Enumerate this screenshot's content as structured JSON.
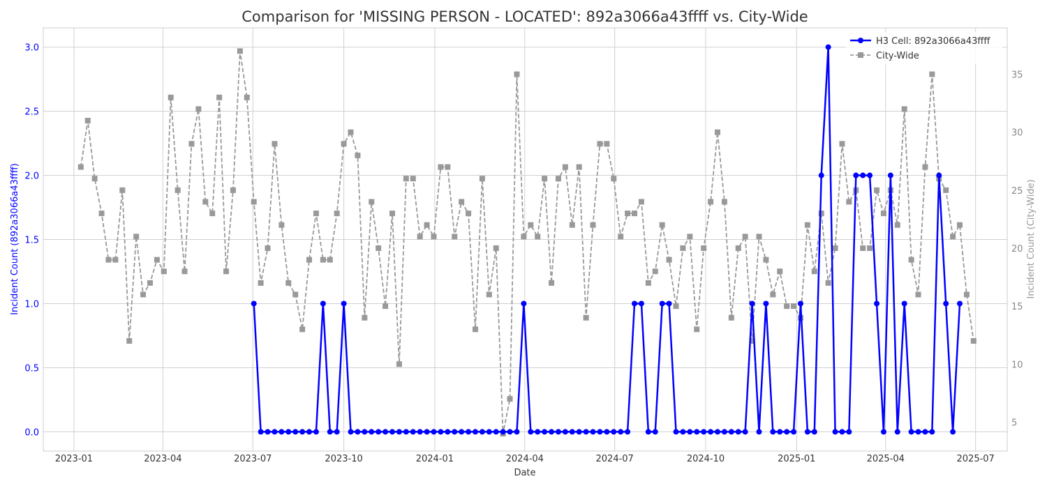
{
  "chart_data": {
    "type": "line",
    "title": "Comparison for 'MISSING PERSON - LOCATED': 892a3066a43ffff vs. City-Wide",
    "xlabel": "Date",
    "ylabel_left": "Incident Count (892a3066a43ffff)",
    "ylabel_right": "Incident Count (City-Wide)",
    "xlim": [
      "2022-12-01",
      "2025-08-02"
    ],
    "ylim_left": [
      -0.15,
      3.15
    ],
    "ylim_right": [
      2.5,
      39
    ],
    "x_ticks": [
      "2023-01",
      "2023-04",
      "2023-07",
      "2023-10",
      "2024-01",
      "2024-04",
      "2024-07",
      "2024-10",
      "2025-01",
      "2025-04",
      "2025-07"
    ],
    "y_ticks_left": [
      "0.0",
      "0.5",
      "1.0",
      "1.5",
      "2.0",
      "2.5",
      "3.0"
    ],
    "y_ticks_right": [
      "5",
      "10",
      "15",
      "20",
      "25",
      "30",
      "35"
    ],
    "grid": true,
    "legend_position": "top-right",
    "series": [
      {
        "name": "H3 Cell: 892a3066a43ffff",
        "axis": "left",
        "color": "#0000ff",
        "style": "solid",
        "marker": "circle",
        "start": "2023-07-02",
        "step_days": 7,
        "values": [
          1,
          0,
          0,
          0,
          0,
          0,
          0,
          0,
          0,
          0,
          1,
          0,
          0,
          1,
          0,
          0,
          0,
          0,
          0,
          0,
          0,
          0,
          0,
          0,
          0,
          0,
          0,
          0,
          0,
          0,
          0,
          0,
          0,
          0,
          0,
          0,
          0,
          0,
          0,
          1,
          0,
          0,
          0,
          0,
          0,
          0,
          0,
          0,
          0,
          0,
          0,
          0,
          0,
          0,
          0,
          1,
          1,
          0,
          0,
          1,
          1,
          0,
          0,
          0,
          0,
          0,
          0,
          0,
          0,
          0,
          0,
          0,
          1,
          0,
          1,
          0,
          0,
          0,
          0,
          1,
          0,
          0,
          2,
          3,
          0,
          0,
          0,
          2,
          2,
          2,
          1,
          0,
          2,
          0,
          1,
          0,
          0,
          0,
          0,
          2,
          1,
          0,
          1
        ]
      },
      {
        "name": "City-Wide",
        "axis": "right",
        "color": "#999999",
        "style": "dashed",
        "marker": "square",
        "start": "2023-01-08",
        "step_days": 7,
        "values": [
          27,
          31,
          26,
          23,
          19,
          19,
          25,
          12,
          21,
          16,
          17,
          19,
          18,
          33,
          25,
          18,
          29,
          32,
          24,
          23,
          33,
          18,
          25,
          37,
          33,
          24,
          17,
          20,
          29,
          22,
          17,
          16,
          13,
          19,
          23,
          19,
          19,
          23,
          29,
          30,
          28,
          14,
          24,
          20,
          15,
          23,
          10,
          26,
          26,
          21,
          22,
          21,
          27,
          27,
          21,
          24,
          23,
          13,
          26,
          16,
          20,
          4,
          7,
          35,
          21,
          22,
          21,
          26,
          17,
          26,
          27,
          22,
          27,
          14,
          22,
          29,
          29,
          26,
          21,
          23,
          23,
          24,
          17,
          18,
          22,
          19,
          15,
          20,
          21,
          13,
          20,
          24,
          30,
          24,
          14,
          20,
          21,
          12,
          21,
          19,
          16,
          18,
          15,
          15,
          14,
          22,
          18,
          23,
          17,
          20,
          29,
          24,
          25,
          20,
          20,
          25,
          23,
          25,
          22,
          32,
          19,
          16,
          27,
          35,
          26,
          25,
          21,
          22,
          16,
          12
        ]
      }
    ]
  }
}
